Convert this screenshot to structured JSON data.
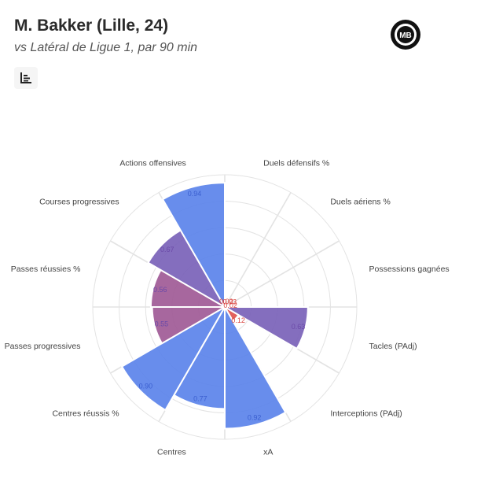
{
  "header": {
    "title": "M. Bakker (Lille, 24)",
    "subtitle": "vs Latéral de Ligue 1, par 90 min"
  },
  "logo": {
    "text": "MB"
  },
  "icons": {
    "menu": "bar-chart-menu-icon"
  },
  "colors": {
    "high": "#5b83ea",
    "mid": "#7a62b8",
    "low": "#a05a96",
    "veryLow": "#e05550",
    "grid": "#e3e3e3",
    "background": "#ffffff"
  },
  "chart_data": {
    "type": "polar-bar",
    "rlim": [
      0,
      1
    ],
    "grid": true,
    "categories": [
      "Duels défensifs %",
      "Duels aériens %",
      "Possessions gagnées",
      "Tacles (PAdj)",
      "Interceptions (PAdj)",
      "xA",
      "Centres",
      "Centres réussis %",
      "Passes progressives",
      "Passes réussies %",
      "Courses progressives",
      "Actions offensives"
    ],
    "values": [
      0.02,
      0.03,
      0.02,
      0.63,
      0.12,
      0.92,
      0.77,
      0.9,
      0.55,
      0.56,
      0.67,
      0.94
    ],
    "value_labels": [
      "0.02",
      "0.03",
      "0.02",
      "0.63",
      "0.12",
      "0.92",
      "0.77",
      "0.90",
      "0.55",
      "0.56",
      "0.67",
      "0.94"
    ]
  }
}
